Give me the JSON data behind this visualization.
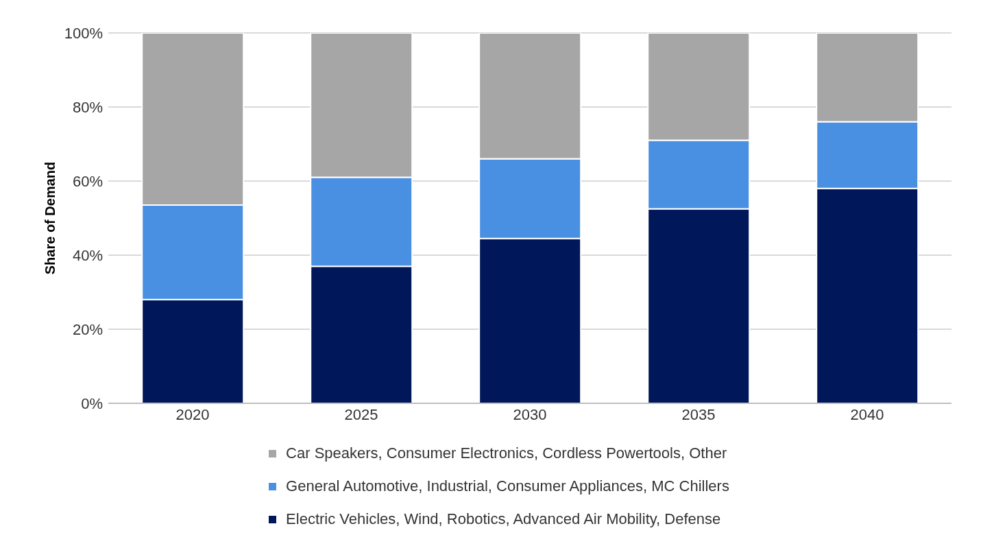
{
  "chart_data": {
    "type": "bar",
    "stacked": true,
    "ylabel": "Share of Demand",
    "categories": [
      "2020",
      "2025",
      "2030",
      "2035",
      "2040"
    ],
    "series": [
      {
        "name": "Electric Vehicles, Wind, Robotics, Advanced Air Mobility, Defense",
        "color": "#00175a",
        "values": [
          28,
          37,
          44.5,
          52.5,
          58
        ]
      },
      {
        "name": "General Automotive, Industrial, Consumer Appliances, MC Chillers",
        "color": "#4a90e2",
        "values": [
          25.5,
          24,
          21.5,
          18.5,
          18
        ]
      },
      {
        "name": "Car Speakers, Consumer Electronics, Cordless Powertools, Other",
        "color": "#a6a6a6",
        "values": [
          46.5,
          39,
          34,
          29,
          24
        ]
      }
    ],
    "ylim": [
      0,
      100
    ],
    "yticks": [
      {
        "value": 0,
        "label": "0%"
      },
      {
        "value": 20,
        "label": "20%"
      },
      {
        "value": 40,
        "label": "40%"
      },
      {
        "value": 60,
        "label": "60%"
      },
      {
        "value": 80,
        "label": "80%"
      },
      {
        "value": 100,
        "label": "100%"
      }
    ],
    "grid": "y",
    "legend": "bottom"
  }
}
